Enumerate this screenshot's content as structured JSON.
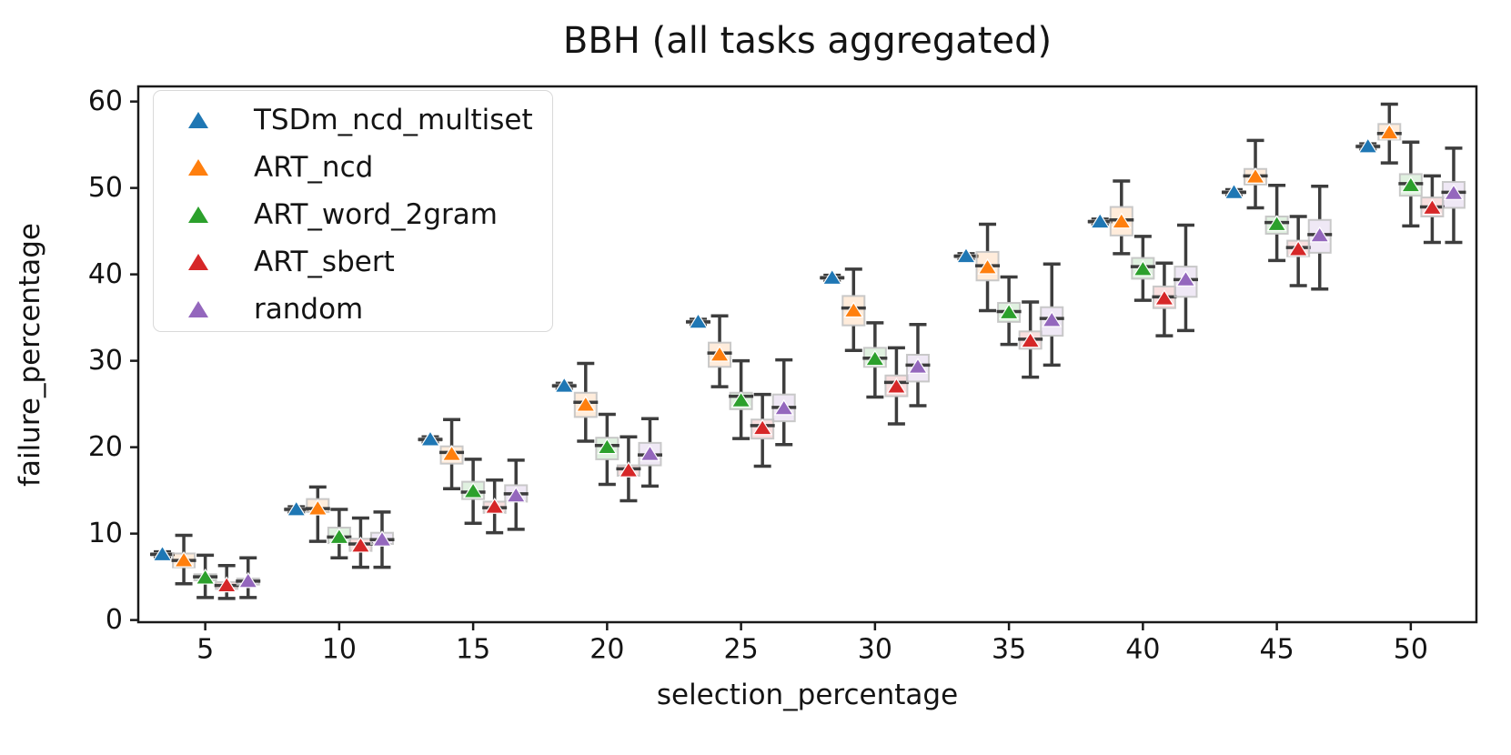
{
  "chart_data": {
    "type": "boxplot",
    "title": "BBH (all tasks aggregated)",
    "xlabel": "selection_percentage",
    "ylabel": "failure_percentage",
    "x_ticks": [
      5,
      10,
      15,
      20,
      25,
      30,
      35,
      40,
      45,
      50
    ],
    "y_ticks": [
      0,
      10,
      20,
      30,
      40,
      50,
      60
    ],
    "xlim": [
      2.5,
      52.45
    ],
    "ylim": [
      -0.25,
      61.75
    ],
    "grid": false,
    "legend_position": "upper left",
    "legend_marker": "triangle-up-icon",
    "mean_marker": "triangle-up",
    "box_format": [
      "x",
      "whisker_low",
      "q1",
      "median",
      "q3",
      "whisker_high",
      "mean"
    ],
    "series": [
      {
        "name": "TSDm_ncd_multiset",
        "color": "#1f77b4",
        "dodge": -1.6,
        "boxes": [
          [
            5,
            7.3,
            7.45,
            7.6,
            7.75,
            7.9,
            7.6
          ],
          [
            10,
            12.5,
            12.65,
            12.8,
            12.95,
            13.1,
            12.8
          ],
          [
            15,
            20.6,
            20.75,
            20.9,
            21.05,
            21.2,
            20.9
          ],
          [
            20,
            26.8,
            26.95,
            27.1,
            27.25,
            27.4,
            27.1
          ],
          [
            25,
            34.2,
            34.35,
            34.5,
            34.65,
            34.8,
            34.5
          ],
          [
            30,
            39.3,
            39.45,
            39.6,
            39.75,
            39.9,
            39.6
          ],
          [
            35,
            41.8,
            41.95,
            42.1,
            42.25,
            42.4,
            42.1
          ],
          [
            40,
            45.8,
            45.95,
            46.1,
            46.25,
            46.4,
            46.1
          ],
          [
            45,
            49.2,
            49.35,
            49.5,
            49.65,
            49.8,
            49.5
          ],
          [
            50,
            54.5,
            54.65,
            54.8,
            54.95,
            55.1,
            54.8
          ]
        ]
      },
      {
        "name": "ART_ncd",
        "color": "#ff7f0e",
        "dodge": -0.8,
        "boxes": [
          [
            5,
            4.2,
            6.1,
            6.9,
            7.7,
            9.8,
            6.9
          ],
          [
            10,
            9.1,
            12.5,
            12.9,
            14.0,
            15.4,
            12.9
          ],
          [
            15,
            15.2,
            18.1,
            19.4,
            20.1,
            23.2,
            19.2
          ],
          [
            20,
            20.7,
            23.5,
            25.2,
            26.3,
            29.7,
            24.9
          ],
          [
            25,
            27.0,
            29.3,
            30.9,
            32.1,
            35.2,
            30.7
          ],
          [
            30,
            31.2,
            34.1,
            36.1,
            37.5,
            40.6,
            35.8
          ],
          [
            35,
            35.8,
            39.3,
            41.0,
            42.6,
            45.8,
            40.8
          ],
          [
            40,
            42.4,
            44.5,
            46.3,
            47.8,
            50.8,
            46.1
          ],
          [
            45,
            47.7,
            50.4,
            51.4,
            52.2,
            55.5,
            51.3
          ],
          [
            50,
            52.9,
            55.6,
            56.3,
            57.4,
            59.7,
            56.4
          ]
        ]
      },
      {
        "name": "ART_word_2gram",
        "color": "#2ca02c",
        "dodge": 0.0,
        "boxes": [
          [
            5,
            2.6,
            4.6,
            5.0,
            5.3,
            7.5,
            4.9
          ],
          [
            10,
            7.2,
            8.9,
            9.6,
            10.7,
            12.8,
            9.6
          ],
          [
            15,
            11.2,
            14.0,
            14.8,
            16.0,
            18.6,
            14.9
          ],
          [
            20,
            15.7,
            18.6,
            20.2,
            21.1,
            23.8,
            20.0
          ],
          [
            25,
            21.0,
            24.4,
            25.9,
            26.3,
            30.0,
            25.4
          ],
          [
            30,
            25.8,
            29.3,
            30.3,
            31.5,
            34.4,
            30.2
          ],
          [
            35,
            31.9,
            34.5,
            35.7,
            36.7,
            39.7,
            35.6
          ],
          [
            40,
            37.0,
            39.5,
            40.9,
            41.9,
            44.4,
            40.6
          ],
          [
            45,
            41.6,
            44.7,
            46.0,
            46.7,
            50.3,
            45.8
          ],
          [
            50,
            45.6,
            49.1,
            50.5,
            51.6,
            55.3,
            50.3
          ]
        ]
      },
      {
        "name": "ART_sbert",
        "color": "#d62728",
        "dodge": 0.8,
        "boxes": [
          [
            5,
            2.5,
            3.6,
            4.0,
            4.4,
            6.3,
            4.0
          ],
          [
            10,
            6.1,
            8.0,
            8.8,
            9.4,
            11.8,
            8.6
          ],
          [
            15,
            10.1,
            12.4,
            13.0,
            13.7,
            16.2,
            13.1
          ],
          [
            20,
            13.8,
            16.7,
            17.5,
            17.9,
            21.2,
            17.3
          ],
          [
            25,
            17.8,
            21.0,
            22.5,
            23.2,
            26.1,
            22.2
          ],
          [
            30,
            22.7,
            25.9,
            27.5,
            28.3,
            31.5,
            27.0
          ],
          [
            35,
            28.1,
            31.4,
            32.5,
            33.4,
            36.8,
            32.3
          ],
          [
            40,
            32.9,
            36.1,
            37.4,
            38.6,
            41.3,
            37.2
          ],
          [
            45,
            38.7,
            42.1,
            43.1,
            43.9,
            46.7,
            42.9
          ],
          [
            50,
            43.7,
            46.7,
            47.8,
            48.9,
            51.4,
            47.7
          ]
        ]
      },
      {
        "name": "random",
        "color": "#9467bd",
        "dodge": 1.6,
        "boxes": [
          [
            5,
            2.6,
            4.1,
            4.5,
            4.8,
            7.2,
            4.5
          ],
          [
            10,
            6.1,
            8.8,
            9.3,
            10.1,
            12.5,
            9.3
          ],
          [
            15,
            10.5,
            13.7,
            14.6,
            15.6,
            18.5,
            14.4
          ],
          [
            20,
            15.5,
            17.9,
            19.1,
            20.5,
            23.3,
            19.2
          ],
          [
            25,
            20.3,
            23.0,
            24.6,
            26.1,
            30.1,
            24.5
          ],
          [
            30,
            24.8,
            27.6,
            29.5,
            30.7,
            34.2,
            29.3
          ],
          [
            35,
            29.5,
            32.9,
            34.9,
            36.2,
            41.2,
            34.7
          ],
          [
            40,
            33.5,
            37.4,
            39.4,
            40.9,
            45.7,
            39.4
          ],
          [
            45,
            38.3,
            42.5,
            44.6,
            46.3,
            50.2,
            44.5
          ],
          [
            50,
            43.7,
            47.7,
            49.5,
            50.7,
            54.6,
            49.4
          ]
        ]
      }
    ],
    "style": {
      "spine_color": "#1a1a1a",
      "whisker_color": "#3d3d3d",
      "median_color": "#3d3d3d",
      "box_fill_opacity": 0.15,
      "box_edge_color": "#c3c3c3",
      "tick_label_color": "#141414",
      "background": "#ffffff"
    }
  }
}
